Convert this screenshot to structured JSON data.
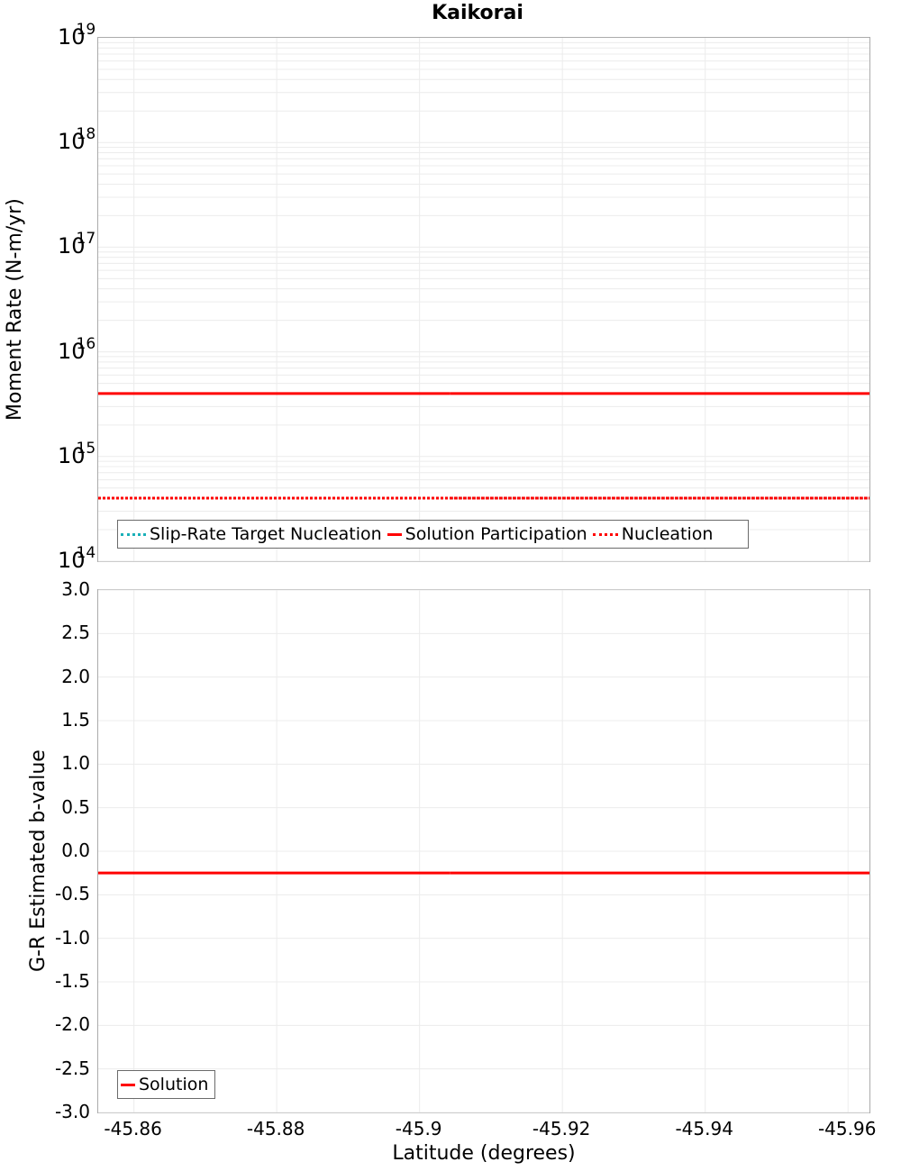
{
  "colors": {
    "target": "#1ab0b8",
    "solution": "#ff0000",
    "nucleation": "#ff0000",
    "grid": "#ececec",
    "border": "#ababab"
  },
  "chart_data": [
    {
      "type": "line",
      "title": "Kaikorai",
      "xlabel": "Latitude (degrees)",
      "ylabel": "Moment Rate (N-m/yr)",
      "yscale": "log",
      "ylim": [
        100000000000000.0,
        1e+19
      ],
      "xlim": [
        -45.855,
        -45.963
      ],
      "x_ticks": [
        "-45.86",
        "-45.88",
        "-45.9",
        "-45.92",
        "-45.94",
        "-45.96"
      ],
      "y_ticks": [
        {
          "base": "10",
          "exp": "19"
        },
        {
          "base": "10",
          "exp": "18"
        },
        {
          "base": "10",
          "exp": "17"
        },
        {
          "base": "10",
          "exp": "16"
        },
        {
          "base": "10",
          "exp": "15"
        },
        {
          "base": "10",
          "exp": "14"
        }
      ],
      "grid": true,
      "legend_position": "lower-left",
      "series": [
        {
          "name": "Slip-Rate Target Nucleation",
          "style": "dotted",
          "color": "#1ab0b8",
          "x": [
            -45.855,
            -45.9043,
            -45.963
          ],
          "values": [
            400000000000000.0,
            400000000000000.0,
            400000000000000.0
          ]
        },
        {
          "name": "Solution Participation",
          "style": "solid",
          "color": "#ff0000",
          "x": [
            -45.855,
            -45.9043,
            -45.963
          ],
          "values": [
            4000000000000000.0,
            4000000000000000.0,
            4000000000000000.0
          ]
        },
        {
          "name": "Nucleation",
          "style": "dotted",
          "color": "#ff0000",
          "x": [
            -45.855,
            -45.9043,
            -45.963
          ],
          "values": [
            400000000000000.0,
            400000000000000.0,
            400000000000000.0
          ]
        }
      ]
    },
    {
      "type": "line",
      "title": "",
      "xlabel": "Latitude (degrees)",
      "ylabel": "G-R Estimated b-value",
      "ylim": [
        -3.0,
        3.0
      ],
      "xlim": [
        -45.855,
        -45.963
      ],
      "x_ticks": [
        "-45.86",
        "-45.88",
        "-45.9",
        "-45.92",
        "-45.94",
        "-45.96"
      ],
      "y_ticks": [
        "3.0",
        "2.5",
        "2.0",
        "1.5",
        "1.0",
        "0.5",
        "0.0",
        "-0.5",
        "-1.0",
        "-1.5",
        "-2.0",
        "-2.5",
        "-3.0"
      ],
      "grid": true,
      "legend_position": "lower-left",
      "series": [
        {
          "name": "Solution",
          "style": "solid",
          "color": "#ff0000",
          "x": [
            -45.855,
            -45.9043,
            -45.963
          ],
          "values": [
            -0.25,
            -0.25,
            -0.25
          ]
        }
      ]
    }
  ]
}
